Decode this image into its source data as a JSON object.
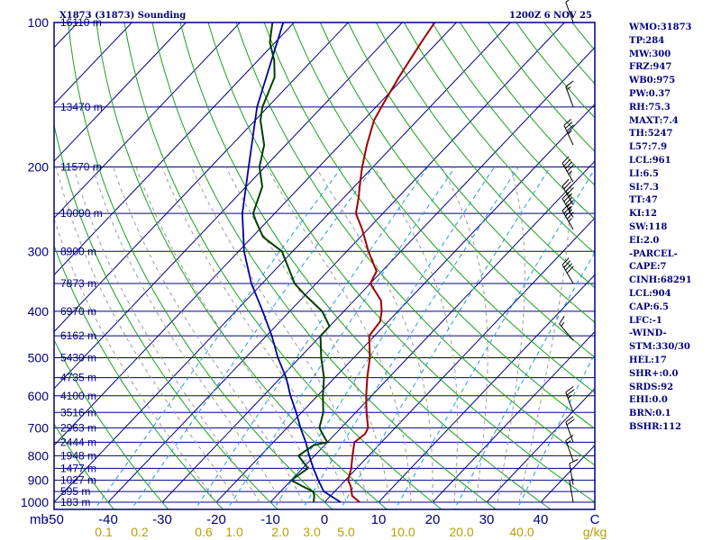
{
  "header": {
    "station": "X1873 (31873) Sounding",
    "time": "1200Z  6 NOV 25"
  },
  "stats": [
    "WMO:31873",
    "TP:284",
    "MW:300",
    "FRZ:947",
    "WB0:975",
    "PW:0.37",
    "RH:75.3",
    "MAXT:7.4",
    "TH:5247",
    "L57:7.9",
    "LCL:961",
    "LI:6.5",
    "SI:7.3",
    "TT:47",
    "KI:12",
    "SW:118",
    "EI:2.0",
    "-PARCEL-",
    "CAPE:7",
    "CINH:68291",
    "LCL:904",
    "CAP:6.5",
    "LFC:-1",
    "-WIND-",
    "STM:330/30",
    "HEL:17",
    "SHR+:0.0",
    "SRDS:92",
    "EHI:0.0",
    "BRN:0.1",
    "BSHR:112"
  ],
  "colors": {
    "frame": "#000080",
    "isobar": "#000080",
    "isotherm": "#000080",
    "dry_adiabat": "#1aa01a",
    "moist_adiabat": "#999999",
    "mixing_ratio": "#2299dd",
    "temperature": "#a00000",
    "dewpoint": "#004000",
    "parcel": "#0000a0",
    "mixing_label": "#b8a000"
  },
  "chart_data": {
    "type": "skew-t log-p sounding",
    "y_axis": {
      "unit": "mb",
      "range": [
        1000,
        100
      ],
      "scale": "log",
      "ticks": [
        "1000",
        "900",
        "800",
        "700",
        "600",
        "500",
        "400",
        "300",
        "200",
        "100"
      ]
    },
    "x_axis": {
      "unit": "C",
      "range": [
        -50,
        50
      ],
      "ticks": [
        "-50",
        "-40",
        "-30",
        "-20",
        "-10",
        "0",
        "10",
        "20",
        "30",
        "40"
      ]
    },
    "mixing_ratio": {
      "unit": "g/kg",
      "labels": [
        "0.1",
        "0.2",
        "0.6",
        "1.0",
        "2.0",
        "3.0",
        "5.0",
        "10.0",
        "20.0",
        "40.0"
      ]
    },
    "height_levels": [
      {
        "p": 100,
        "label": "16110 m"
      },
      {
        "p": 150,
        "label": "13470 m"
      },
      {
        "p": 200,
        "label": "11570 m"
      },
      {
        "p": 250,
        "label": "10090 m"
      },
      {
        "p": 300,
        "label": "8900 m"
      },
      {
        "p": 350,
        "label": "7873 m"
      },
      {
        "p": 400,
        "label": "6970 m"
      },
      {
        "p": 450,
        "label": "6162 m"
      },
      {
        "p": 500,
        "label": "5430 m"
      },
      {
        "p": 550,
        "label": "4735 m"
      },
      {
        "p": 600,
        "label": "4100 m"
      },
      {
        "p": 650,
        "label": "3516 m"
      },
      {
        "p": 700,
        "label": "2963 m"
      },
      {
        "p": 750,
        "label": "2444 m"
      },
      {
        "p": 800,
        "label": "1948 m"
      },
      {
        "p": 850,
        "label": "1477 m"
      },
      {
        "p": 900,
        "label": "1027 m"
      },
      {
        "p": 950,
        "label": "595 m"
      },
      {
        "p": 1000,
        "label": "183 m"
      }
    ],
    "temperature": [
      [
        1000,
        6.5
      ],
      [
        970,
        4
      ],
      [
        925,
        2
      ],
      [
        900,
        0.5
      ],
      [
        850,
        -1
      ],
      [
        800,
        -3
      ],
      [
        750,
        -5
      ],
      [
        720,
        -4.5
      ],
      [
        700,
        -5
      ],
      [
        650,
        -8
      ],
      [
        600,
        -11
      ],
      [
        550,
        -14
      ],
      [
        500,
        -17
      ],
      [
        450,
        -21
      ],
      [
        420,
        -21.5
      ],
      [
        400,
        -23
      ],
      [
        380,
        -25
      ],
      [
        350,
        -30
      ],
      [
        330,
        -31
      ],
      [
        300,
        -36
      ],
      [
        270,
        -41
      ],
      [
        250,
        -45
      ],
      [
        230,
        -47.5
      ],
      [
        220,
        -49
      ],
      [
        200,
        -52
      ],
      [
        180,
        -55
      ],
      [
        160,
        -58
      ],
      [
        150,
        -59
      ],
      [
        130,
        -61
      ],
      [
        110,
        -63
      ],
      [
        100,
        -64
      ]
    ],
    "dewpoint": [
      [
        1000,
        -2
      ],
      [
        970,
        -3
      ],
      [
        950,
        -4
      ],
      [
        925,
        -7
      ],
      [
        900,
        -10
      ],
      [
        850,
        -9
      ],
      [
        800,
        -13
      ],
      [
        760,
        -12
      ],
      [
        750,
        -10
      ],
      [
        725,
        -12
      ],
      [
        700,
        -14
      ],
      [
        650,
        -16
      ],
      [
        600,
        -19
      ],
      [
        550,
        -22
      ],
      [
        500,
        -26
      ],
      [
        450,
        -30
      ],
      [
        430,
        -30
      ],
      [
        400,
        -34
      ],
      [
        370,
        -40
      ],
      [
        350,
        -44
      ],
      [
        300,
        -52
      ],
      [
        280,
        -58
      ],
      [
        260,
        -62
      ],
      [
        250,
        -64
      ],
      [
        220,
        -67
      ],
      [
        200,
        -71
      ],
      [
        180,
        -74
      ],
      [
        160,
        -79
      ],
      [
        150,
        -81
      ],
      [
        130,
        -84
      ],
      [
        120,
        -87
      ],
      [
        110,
        -91
      ],
      [
        100,
        -94
      ]
    ],
    "parcel": [
      [
        1000,
        3
      ],
      [
        950,
        -2
      ],
      [
        900,
        -5
      ],
      [
        850,
        -8
      ],
      [
        800,
        -11
      ],
      [
        750,
        -14
      ],
      [
        700,
        -17.5
      ],
      [
        650,
        -21
      ],
      [
        600,
        -25
      ],
      [
        550,
        -29
      ],
      [
        500,
        -34
      ],
      [
        450,
        -39
      ],
      [
        400,
        -45
      ],
      [
        350,
        -52
      ],
      [
        300,
        -59
      ],
      [
        250,
        -66
      ],
      [
        200,
        -73
      ],
      [
        150,
        -82
      ],
      [
        100,
        -92
      ]
    ],
    "wind_barbs": [
      {
        "p": 100,
        "dir": 340,
        "kt": 10
      },
      {
        "p": 150,
        "dir": 340,
        "kt": 15
      },
      {
        "p": 180,
        "dir": 335,
        "kt": 35
      },
      {
        "p": 215,
        "dir": 330,
        "kt": 45
      },
      {
        "p": 240,
        "dir": 330,
        "kt": 45
      },
      {
        "p": 255,
        "dir": 330,
        "kt": 45
      },
      {
        "p": 270,
        "dir": 330,
        "kt": 45
      },
      {
        "p": 350,
        "dir": 330,
        "kt": 40
      },
      {
        "p": 460,
        "dir": 320,
        "kt": 15
      },
      {
        "p": 650,
        "dir": 340,
        "kt": 25
      },
      {
        "p": 750,
        "dir": 340,
        "kt": 20
      },
      {
        "p": 820,
        "dir": 340,
        "kt": 15
      },
      {
        "p": 920,
        "dir": 350,
        "kt": 10
      },
      {
        "p": 1000,
        "dir": 350,
        "kt": 5
      }
    ]
  }
}
